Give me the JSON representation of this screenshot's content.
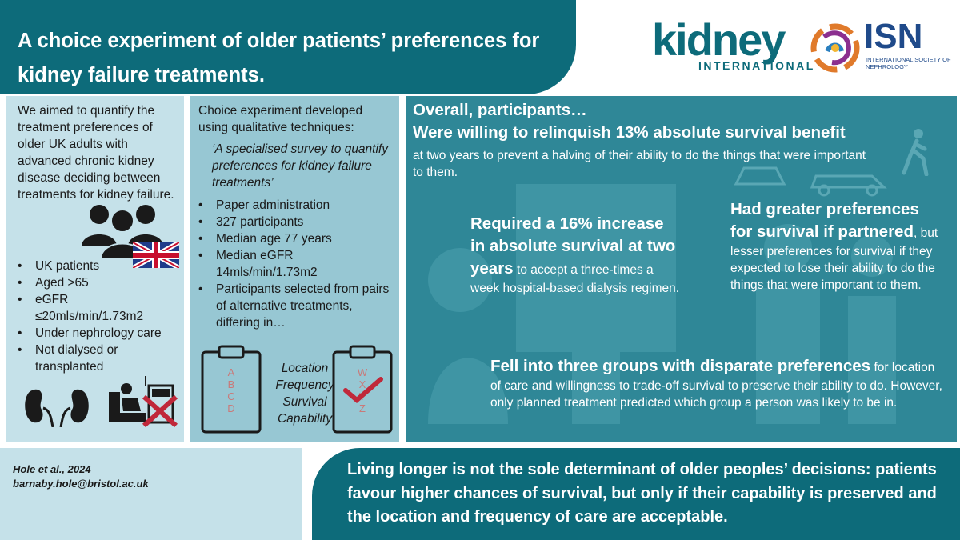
{
  "header": {
    "title": "A choice experiment of older patients’ preferences for kidney failure treatments."
  },
  "logos": {
    "kidney_international": {
      "word": "kidney",
      "sub": "INTERNATIONAL"
    },
    "isn": {
      "word": "ISN",
      "sub": "INTERNATIONAL SOCIETY OF NEPHROLOGY"
    }
  },
  "panel1": {
    "intro": "We aimed to quantify the treatment preferences of older UK adults with advanced chronic kidney disease deciding between treatments for kidney failure.",
    "criteria": [
      "UK patients",
      "Aged >65",
      "eGFR ≤20mls/min/1.73m2",
      "Under nephrology care",
      "Not dialysed or transplanted"
    ]
  },
  "panel2": {
    "intro": "Choice experiment developed using qualitative techniques:",
    "quote": "‘A specialised survey to quantify preferences for kidney failure treatments’",
    "details": [
      "Paper administration",
      "327 participants",
      "Median age 77 years",
      "Median eGFR 14mls/min/1.73m2",
      "Participants selected from pairs of alternative treatments, differing in…"
    ],
    "attributes": [
      "Location",
      "Frequency",
      "Survival",
      "Capability"
    ],
    "clipboard_left": [
      "A",
      "B",
      "C",
      "D"
    ],
    "clipboard_right": [
      "W",
      "X",
      "Y",
      "Z"
    ]
  },
  "panel3": {
    "heading": "Overall, participants…",
    "finding1_bold": "Were willing to relinquish 13% absolute survival benefit",
    "finding1_text": "at two years to prevent a halving of their ability to do the things that were important to them.",
    "finding2_bold": "Required a 16% increase in absolute survival at two years",
    "finding2_text": "to accept a three-times a week hospital-based dialysis regimen.",
    "finding3_bold": "Had greater preferences for survival if partnered",
    "finding3_text": ", but lesser preferences for survival if they expected to lose their ability to do the things that were important to them.",
    "finding4_bold": "Fell into three groups with disparate preferences",
    "finding4_text": "for location of care and willingness to trade-off survival to preserve their ability to do. However, only planned treatment predicted which group a person was likely to be in."
  },
  "footer": {
    "citation": "Hole et al., 2024",
    "email": "barnaby.hole@bristol.ac.uk",
    "conclusion": "Living longer is not the sole determinant of older peoples’ decisions: patients favour higher chances of survival, but only if their capability is preserved and the location and frequency of care are acceptable."
  },
  "colors": {
    "teal_dark": "#0d6b7a",
    "teal_mid": "#2f8797",
    "teal_light": "#97c7d3",
    "teal_pale": "#c5e1e9",
    "cross_red": "#c0283a"
  },
  "icons": [
    "people-icon",
    "uk-flag-icon",
    "kidneys-icon",
    "dialysis-chair-icon",
    "clipboard-icon",
    "checkmark-icon",
    "car-icon",
    "walking-person-icon",
    "picnic-table-icon"
  ]
}
